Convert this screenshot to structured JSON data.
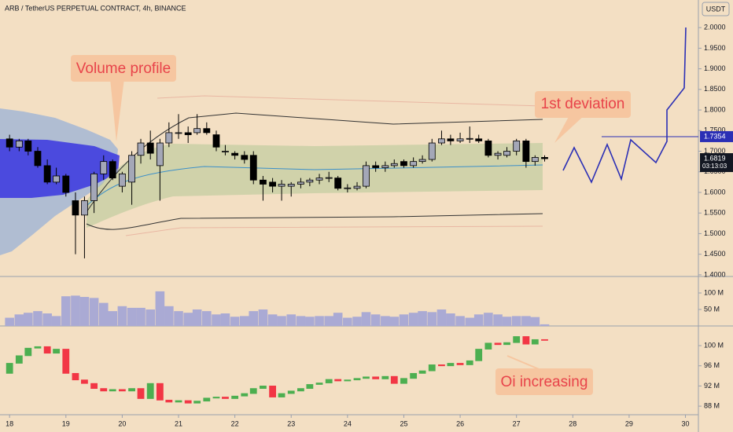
{
  "header": {
    "title": "ARB / TetherUS PERPETUAL CONTRACT, 4h, BINANCE",
    "currency": "USDT"
  },
  "chart_data": [
    {
      "type": "candlestick",
      "name": "price",
      "x": [
        18.0,
        18.17,
        18.33,
        18.5,
        18.67,
        18.83,
        19.0,
        19.17,
        19.33,
        19.5,
        19.67,
        19.83,
        20.0,
        20.17,
        20.33,
        20.5,
        20.67,
        20.83,
        21.0,
        21.17,
        21.33,
        21.5,
        21.67,
        21.83,
        22.0,
        22.17,
        22.33,
        22.5,
        22.67,
        22.83,
        23.0,
        23.17,
        23.33,
        23.5,
        23.67,
        23.83,
        24.0,
        24.17,
        24.33,
        24.5,
        24.67,
        24.83,
        25.0,
        25.17,
        25.33,
        25.5,
        25.67,
        25.83,
        26.0,
        26.17,
        26.33,
        26.5,
        26.67,
        26.83,
        27.0,
        27.17,
        27.33,
        27.5
      ],
      "open": [
        1.73,
        1.71,
        1.725,
        1.7,
        1.665,
        1.625,
        1.64,
        1.58,
        1.545,
        1.58,
        1.645,
        1.675,
        1.615,
        1.625,
        1.69,
        1.72,
        1.665,
        1.72,
        1.745,
        1.745,
        1.745,
        1.755,
        1.74,
        1.7,
        1.695,
        1.69,
        1.69,
        1.63,
        1.625,
        1.615,
        1.615,
        1.62,
        1.625,
        1.63,
        1.635,
        1.635,
        1.61,
        1.61,
        1.615,
        1.665,
        1.66,
        1.665,
        1.675,
        1.665,
        1.675,
        1.68,
        1.72,
        1.73,
        1.725,
        1.73,
        1.73,
        1.725,
        1.69,
        1.69,
        1.7,
        1.725,
        1.675,
        1.685
      ],
      "high": [
        1.74,
        1.73,
        1.73,
        1.71,
        1.68,
        1.66,
        1.645,
        1.6,
        1.59,
        1.65,
        1.69,
        1.68,
        1.65,
        1.7,
        1.73,
        1.75,
        1.73,
        1.77,
        1.79,
        1.76,
        1.79,
        1.77,
        1.75,
        1.715,
        1.7,
        1.7,
        1.7,
        1.64,
        1.635,
        1.63,
        1.625,
        1.635,
        1.635,
        1.645,
        1.65,
        1.64,
        1.62,
        1.625,
        1.675,
        1.675,
        1.675,
        1.68,
        1.68,
        1.685,
        1.69,
        1.73,
        1.75,
        1.74,
        1.745,
        1.76,
        1.74,
        1.73,
        1.7,
        1.71,
        1.73,
        1.73,
        1.69,
        1.69
      ],
      "low": [
        1.7,
        1.7,
        1.69,
        1.66,
        1.62,
        1.62,
        1.59,
        1.45,
        1.44,
        1.55,
        1.63,
        1.63,
        1.6,
        1.57,
        1.67,
        1.68,
        1.58,
        1.71,
        1.73,
        1.72,
        1.74,
        1.74,
        1.7,
        1.69,
        1.68,
        1.67,
        1.62,
        1.58,
        1.6,
        1.58,
        1.59,
        1.61,
        1.615,
        1.62,
        1.625,
        1.605,
        1.6,
        1.605,
        1.61,
        1.65,
        1.65,
        1.66,
        1.66,
        1.66,
        1.67,
        1.675,
        1.715,
        1.715,
        1.72,
        1.72,
        1.72,
        1.685,
        1.68,
        1.685,
        1.69,
        1.66,
        1.665,
        1.675
      ],
      "close": [
        1.71,
        1.725,
        1.7,
        1.665,
        1.625,
        1.64,
        1.6,
        1.545,
        1.58,
        1.645,
        1.675,
        1.635,
        1.645,
        1.69,
        1.72,
        1.695,
        1.72,
        1.745,
        1.745,
        1.74,
        1.755,
        1.745,
        1.71,
        1.7,
        1.69,
        1.68,
        1.63,
        1.62,
        1.615,
        1.62,
        1.62,
        1.625,
        1.63,
        1.635,
        1.636,
        1.61,
        1.611,
        1.615,
        1.665,
        1.66,
        1.665,
        1.67,
        1.665,
        1.675,
        1.68,
        1.72,
        1.73,
        1.725,
        1.73,
        1.731,
        1.725,
        1.69,
        1.695,
        1.7,
        1.725,
        1.675,
        1.685,
        1.6819
      ],
      "up_color": "#a4a7b7",
      "down_color": "#000000",
      "xlim": [
        17.83,
        30.23
      ],
      "ylim": [
        1.396,
        2.067
      ],
      "yticks": [
        {
          "value": 1.4,
          "label": "1.4000"
        },
        {
          "value": 1.45,
          "label": "1.4500"
        },
        {
          "value": 1.5,
          "label": "1.5000"
        },
        {
          "value": 1.55,
          "label": "1.5500"
        },
        {
          "value": 1.6,
          "label": "1.6000"
        },
        {
          "value": 1.65,
          "label": "1.6500"
        },
        {
          "value": 1.7,
          "label": "1.7000"
        },
        {
          "value": 1.75,
          "label": "1.7500"
        },
        {
          "value": 1.8,
          "label": "1.8000"
        },
        {
          "value": 1.85,
          "label": "1.8500"
        },
        {
          "value": 1.9,
          "label": "1.9000"
        },
        {
          "value": 1.95,
          "label": "1.9500"
        },
        {
          "value": 2.0,
          "label": "2.0000"
        }
      ],
      "level": {
        "value": 1.7354,
        "label": "1.7354"
      },
      "last_price": {
        "value": 1.6819,
        "label": "1.6819"
      },
      "countdown": "03:13:03",
      "annotations": [
        "Volume profile",
        "1st deviation"
      ]
    },
    {
      "type": "bar",
      "name": "volume",
      "color": "#aaaad4",
      "x": [
        18.0,
        18.17,
        18.33,
        18.5,
        18.67,
        18.83,
        19.0,
        19.17,
        19.33,
        19.5,
        19.67,
        19.83,
        20.0,
        20.17,
        20.33,
        20.5,
        20.67,
        20.83,
        21.0,
        21.17,
        21.33,
        21.5,
        21.67,
        21.83,
        22.0,
        22.17,
        22.33,
        22.5,
        22.67,
        22.83,
        23.0,
        23.17,
        23.33,
        23.5,
        23.67,
        23.83,
        24.0,
        24.17,
        24.33,
        24.5,
        24.67,
        24.83,
        25.0,
        25.17,
        25.33,
        25.5,
        25.67,
        25.83,
        26.0,
        26.17,
        26.33,
        26.5,
        26.67,
        26.83,
        27.0,
        27.17,
        27.33,
        27.5
      ],
      "values": [
        25,
        35,
        40,
        45,
        38,
        30,
        90,
        92,
        88,
        85,
        70,
        45,
        60,
        55,
        55,
        50,
        105,
        60,
        45,
        40,
        50,
        45,
        35,
        38,
        28,
        30,
        45,
        50,
        35,
        30,
        35,
        30,
        28,
        30,
        30,
        40,
        25,
        28,
        42,
        35,
        30,
        28,
        35,
        40,
        45,
        42,
        50,
        38,
        30,
        25,
        35,
        40,
        35,
        28,
        30,
        30,
        27,
        5
      ],
      "xlim": [
        17.83,
        30.23
      ],
      "ylim": [
        0,
        150
      ],
      "yticks": [
        {
          "value": 50,
          "label": "50 M"
        },
        {
          "value": 100,
          "label": "100 M"
        }
      ]
    },
    {
      "type": "candlestick",
      "name": "open-interest",
      "x": [
        18.0,
        18.17,
        18.33,
        18.5,
        18.67,
        18.83,
        19.0,
        19.17,
        19.33,
        19.5,
        19.67,
        19.83,
        20.0,
        20.17,
        20.33,
        20.5,
        20.67,
        20.83,
        21.0,
        21.17,
        21.33,
        21.5,
        21.67,
        21.83,
        22.0,
        22.17,
        22.33,
        22.5,
        22.67,
        22.83,
        23.0,
        23.17,
        23.33,
        23.5,
        23.67,
        23.83,
        24.0,
        24.17,
        24.33,
        24.5,
        24.67,
        24.83,
        25.0,
        25.17,
        25.33,
        25.5,
        25.67,
        25.83,
        26.0,
        26.17,
        26.33,
        26.5,
        26.67,
        26.83,
        27.0,
        27.17,
        27.33,
        27.5
      ],
      "open": [
        94.5,
        96.5,
        98,
        99.5,
        99.8,
        98.5,
        99.3,
        94.5,
        93.2,
        92.5,
        91.5,
        91,
        91.3,
        91,
        91.5,
        89.5,
        92.5,
        89.2,
        88.8,
        89.1,
        88.6,
        89,
        89.6,
        89.8,
        89.5,
        90,
        90.5,
        91.5,
        92,
        89.8,
        90.5,
        91,
        91.5,
        92.3,
        92.6,
        93.3,
        93,
        93.2,
        93.5,
        93.8,
        93.4,
        93.9,
        92.5,
        93.5,
        94.5,
        95,
        96.2,
        96,
        96.5,
        96.2,
        97,
        99.3,
        100.5,
        100.2,
        100.6,
        101.8,
        100.3,
        101.2
      ],
      "close": [
        96.5,
        98,
        99.5,
        99.8,
        98.5,
        99.3,
        94.5,
        93.2,
        92.5,
        91.5,
        91,
        91.3,
        91,
        91.5,
        89.5,
        92.5,
        89.2,
        88.8,
        89.1,
        88.6,
        89,
        89.6,
        89.8,
        89.5,
        90,
        90.5,
        91.5,
        92,
        89.8,
        90.5,
        91,
        91.5,
        92.3,
        92.6,
        93.3,
        93,
        93.2,
        93.5,
        93.8,
        93.4,
        93.9,
        92.5,
        93.5,
        94.5,
        95,
        96.2,
        96,
        96.5,
        96.2,
        97,
        99.3,
        100.5,
        100.2,
        100.6,
        101.8,
        100.3,
        101.2,
        101.1
      ],
      "up_color": "#4caf50",
      "down_color": "#f23645",
      "xlim": [
        17.83,
        30.23
      ],
      "ylim": [
        86.3,
        103.9
      ],
      "yticks": [
        {
          "value": 88,
          "label": "88 M"
        },
        {
          "value": 92,
          "label": "92 M"
        },
        {
          "value": 96,
          "label": "96 M"
        },
        {
          "value": 100,
          "label": "100 M"
        }
      ],
      "xticks": [
        18,
        19,
        20,
        21,
        22,
        23,
        24,
        25,
        26,
        27,
        28,
        29,
        30
      ],
      "annotations": [
        "Oi increasing"
      ]
    }
  ]
}
